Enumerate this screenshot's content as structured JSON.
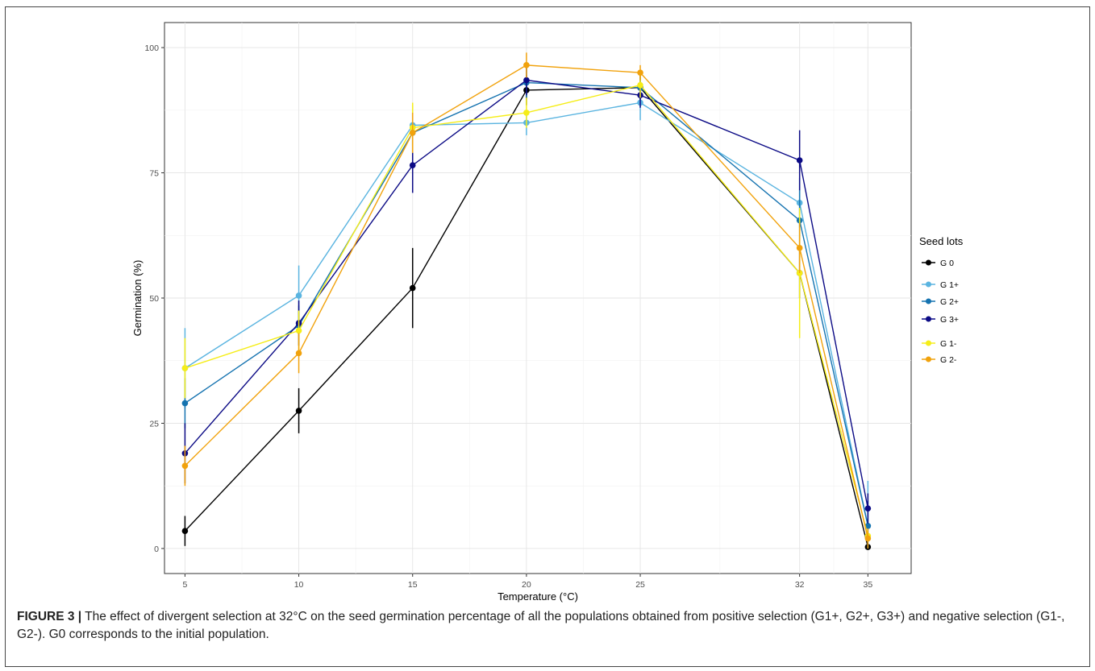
{
  "caption": {
    "label": "FIGURE 3 |",
    "text": " The effect of divergent selection at 32°C on the seed germination percentage of all the populations obtained from positive selection (G1+, G2+, G3+) and negative selection (G1-, G2-). G0 corresponds to the initial population."
  },
  "chart_data": {
    "type": "line",
    "title": "",
    "xlabel": "Temperature (°C)",
    "ylabel": "Germination (%)",
    "x": [
      5,
      10,
      15,
      20,
      25,
      32,
      35
    ],
    "xlim": [
      4.1,
      36.9
    ],
    "ylim": [
      -5,
      105
    ],
    "x_ticks": [
      5,
      10,
      15,
      20,
      25,
      32,
      35
    ],
    "y_ticks": [
      0,
      25,
      50,
      75,
      100
    ],
    "grid": true,
    "legend": {
      "title": "Seed lots",
      "position": "right"
    },
    "series": [
      {
        "name": "G 0",
        "color": "#000000",
        "values": [
          3.5,
          27.5,
          52,
          91.5,
          92,
          55,
          0.3
        ],
        "err": [
          3,
          4.5,
          8,
          3,
          2.5,
          5,
          0.5
        ]
      },
      {
        "name": "G 1+",
        "color": "#5ab4e0",
        "values": [
          36,
          50.5,
          84.5,
          85,
          89,
          69,
          4.5
        ],
        "err": [
          8,
          6,
          4,
          2.5,
          3.5,
          5,
          9
        ]
      },
      {
        "name": "G 2+",
        "color": "#1573b0",
        "values": [
          29,
          44.5,
          83,
          93,
          92,
          65.5,
          4.5
        ],
        "err": [
          5,
          4,
          4,
          3,
          2.5,
          6,
          5
        ]
      },
      {
        "name": "G 3+",
        "color": "#0b0a85",
        "values": [
          19,
          45,
          76.5,
          93.5,
          90.5,
          77.5,
          8
        ],
        "err": [
          6,
          4.5,
          5.5,
          3,
          2.5,
          6,
          3
        ]
      },
      {
        "name": "G 1-",
        "color": "#f5ed18",
        "values": [
          36,
          43.5,
          84,
          87,
          92.5,
          55,
          2.5
        ],
        "err": [
          6,
          4,
          5,
          3,
          2.5,
          13,
          1
        ]
      },
      {
        "name": "G 2-",
        "color": "#f1a20c",
        "values": [
          16.5,
          39,
          83,
          96.5,
          95,
          60,
          2
        ],
        "err": [
          4,
          4,
          4,
          2.5,
          1.5,
          5,
          2
        ]
      }
    ]
  }
}
